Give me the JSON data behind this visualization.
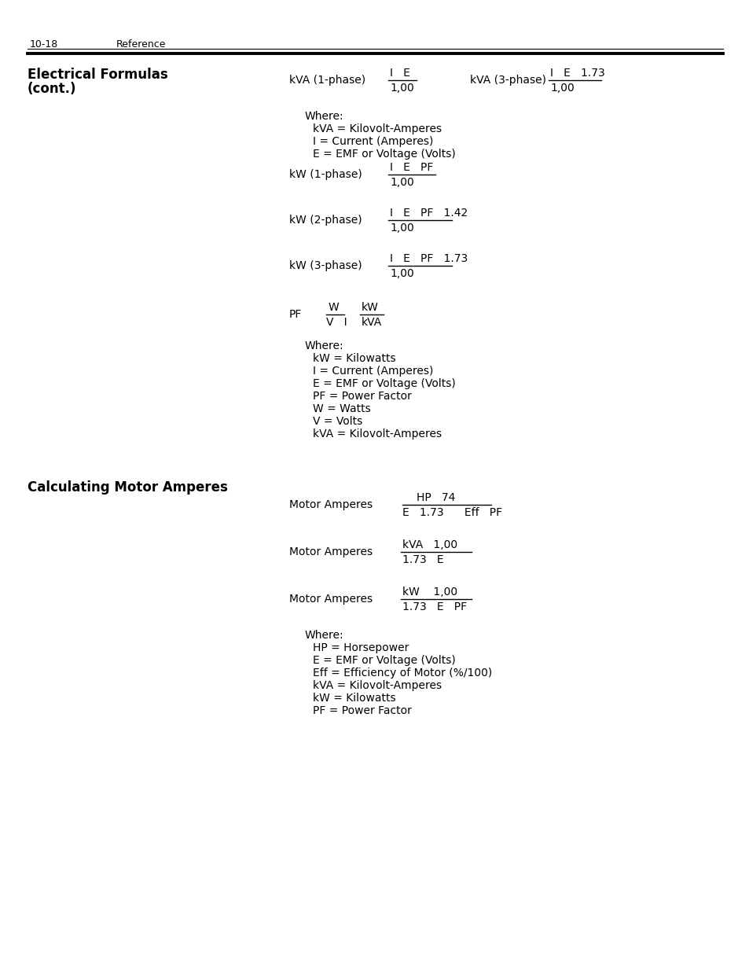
{
  "bg_color": "#ffffff",
  "page_num": "10-18",
  "page_ref": "Reference",
  "sec1_line1": "Electrical Formulas",
  "sec1_line2": "(cont.)",
  "sec2_title": "Calculating Motor Amperes",
  "kva1_label": "kVA (1-phase)",
  "kva1_num": "I   E",
  "kva1_den": "1,00",
  "kva3_label": "kVA (3-phase)",
  "kva3_num": "I   E   1.73",
  "kva3_den": "1,00",
  "where1": "Where:",
  "where1_lines": [
    "kVA = Kilovolt-Amperes",
    "I = Current (Amperes)",
    "E = EMF or Voltage (Volts)"
  ],
  "kw1_label": "kW (1-phase)",
  "kw1_num": "I   E   PF",
  "kw1_den": "1,00",
  "kw2_label": "kW (2-phase)",
  "kw2_num": "I   E   PF   1.42",
  "kw2_den": "1,00",
  "kw3_label": "kW (3-phase)",
  "kw3_num": "I   E   PF   1.73",
  "kw3_den": "1,00",
  "pf_label": "PF",
  "pf_w_num": "W",
  "pf_w_den": "V   I",
  "pf_kw_num": "kW",
  "pf_kw_den": "kVA",
  "where2": "Where:",
  "where2_lines": [
    "kW = Kilowatts",
    "I = Current (Amperes)",
    "E = EMF or Voltage (Volts)",
    "PF = Power Factor",
    "W = Watts",
    "V = Volts",
    "kVA = Kilovolt-Amperes"
  ],
  "ma1_label": "Motor Amperes",
  "ma1_num": "HP   74",
  "ma1_den": "E   1.73      Eff   PF",
  "ma2_label": "Motor Amperes",
  "ma2_num": "kVA   1,00",
  "ma2_den": "1.73   E",
  "ma3_label": "Motor Amperes",
  "ma3_num": "kW    1,00",
  "ma3_den": "1.73   E   PF",
  "where3": "Where:",
  "where3_lines": [
    "HP = Horsepower",
    "E = EMF or Voltage (Volts)",
    "Eff = Efficiency of Motor (%/100)",
    "kVA = Kilovolt-Amperes",
    "kW = Kilowatts",
    "PF = Power Factor"
  ]
}
